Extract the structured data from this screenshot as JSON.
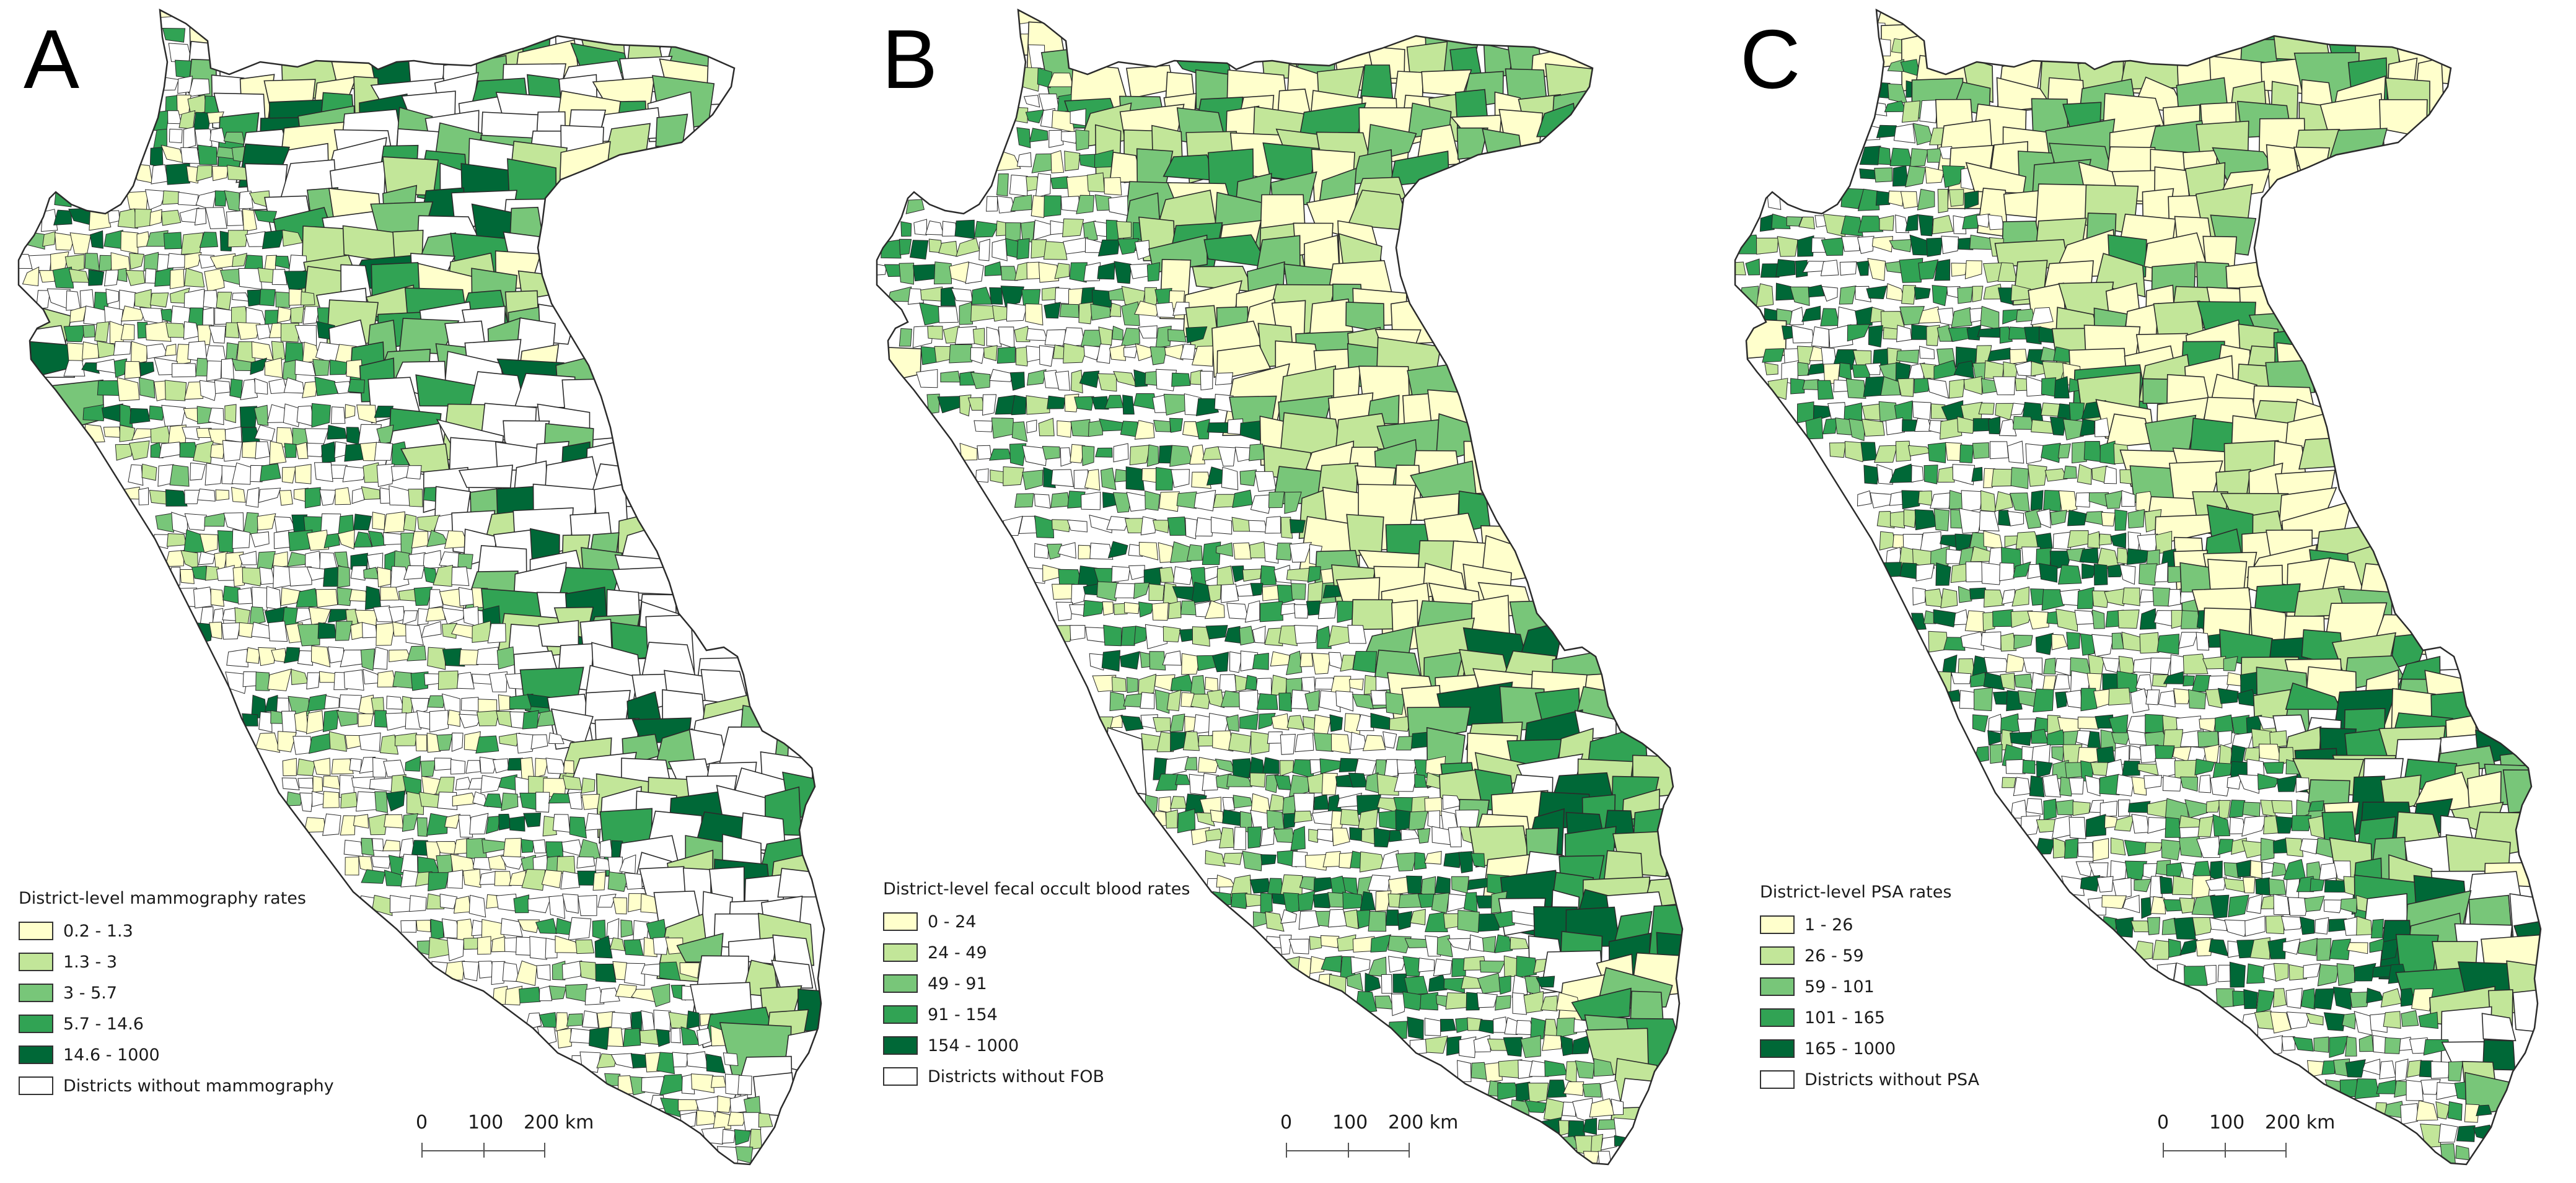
{
  "colors": {
    "class_1": "#ffffcc",
    "class_2": "#c2e699",
    "class_3": "#78c679",
    "class_4": "#31a354",
    "class_5": "#006837",
    "no_data": "#ffffff",
    "border": "#2b2b2b"
  },
  "panels": [
    {
      "letter": "A",
      "legend": {
        "title": "District-level mammography rates",
        "items": [
          {
            "label": "0.2 - 1.3",
            "color": "#ffffcc"
          },
          {
            "label": "1.3 - 3",
            "color": "#c2e699"
          },
          {
            "label": "3 - 5.7",
            "color": "#78c679"
          },
          {
            "label": "5.7 - 14.6",
            "color": "#31a354"
          },
          {
            "label": "14.6 - 1000",
            "color": "#006837"
          },
          {
            "label": "Districts without mammography",
            "color": "#ffffff"
          }
        ]
      },
      "scale": {
        "ticks": [
          "0",
          "100",
          "200 km"
        ]
      },
      "fill_weights": [
        0.22,
        0.12,
        0.1,
        0.1,
        0.08,
        0.38
      ]
    },
    {
      "letter": "B",
      "legend": {
        "title": "District-level fecal occult blood rates",
        "items": [
          {
            "label": "0 - 24",
            "color": "#ffffcc"
          },
          {
            "label": "24 - 49",
            "color": "#c2e699"
          },
          {
            "label": "49 - 91",
            "color": "#78c679"
          },
          {
            "label": "91 - 154",
            "color": "#31a354"
          },
          {
            "label": "154 - 1000",
            "color": "#006837"
          },
          {
            "label": "Districts without FOB",
            "color": "#ffffff"
          }
        ]
      },
      "scale": {
        "ticks": [
          "0",
          "100",
          "200 km"
        ]
      },
      "fill_weights": [
        0.32,
        0.18,
        0.18,
        0.16,
        0.14,
        0.02
      ]
    },
    {
      "letter": "C",
      "legend": {
        "title": "District-level PSA rates",
        "items": [
          {
            "label": "1 - 26",
            "color": "#ffffcc"
          },
          {
            "label": "26 - 59",
            "color": "#c2e699"
          },
          {
            "label": "59 - 101",
            "color": "#78c679"
          },
          {
            "label": "101 - 165",
            "color": "#31a354"
          },
          {
            "label": "165 - 1000",
            "color": "#006837"
          },
          {
            "label": "Districts without PSA",
            "color": "#ffffff"
          }
        ]
      },
      "scale": {
        "ticks": [
          "0",
          "100",
          "200 km"
        ]
      },
      "fill_weights": [
        0.3,
        0.2,
        0.16,
        0.16,
        0.16,
        0.02
      ]
    }
  ]
}
